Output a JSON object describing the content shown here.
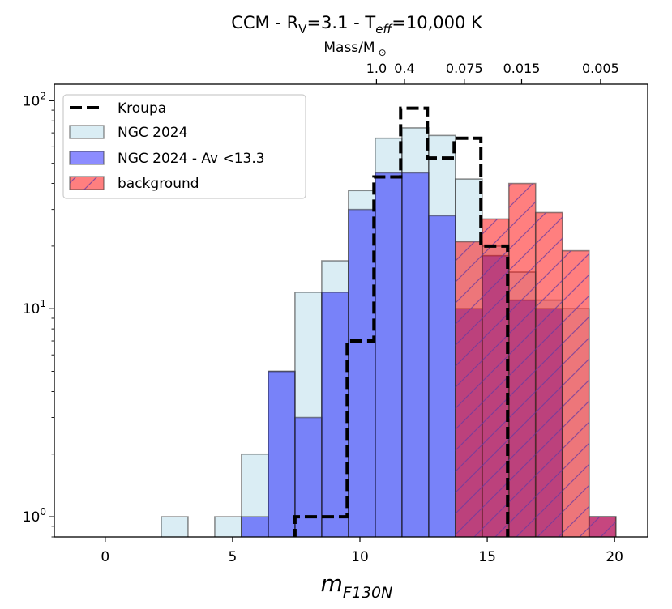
{
  "chart_data": {
    "type": "histogram",
    "title_parts": [
      "CCM - R",
      "V",
      "=3.1 - T",
      "eff",
      "=10,000 K"
    ],
    "xlabel_main": "m",
    "xlabel_sub": "F130N",
    "ylabel": "",
    "xlim": [
      -2,
      21.3
    ],
    "ylim_log": [
      0.8,
      120
    ],
    "yscale": "log",
    "x_ticks": [
      0,
      5,
      10,
      15,
      20
    ],
    "x_tick_labels": [
      "0",
      "5",
      "10",
      "15",
      "20"
    ],
    "y_ticks": [
      1,
      10,
      100
    ],
    "y_tick_label_base": "10",
    "y_tick_label_exps": [
      "0",
      "1",
      "2"
    ],
    "top_axis": {
      "label_main": "Mass/M",
      "label_sym": "⊙",
      "ticks": [
        {
          "x": 10.65,
          "label": "1.0"
        },
        {
          "x": 11.75,
          "label": "0.4"
        },
        {
          "x": 14.1,
          "label": "0.075"
        },
        {
          "x": 16.35,
          "label": "0.015"
        },
        {
          "x": 19.45,
          "label": "0.005"
        }
      ]
    },
    "bin_edges": [
      2.2,
      3.25,
      4.3,
      5.35,
      6.4,
      7.45,
      8.5,
      9.55,
      10.6,
      11.65,
      12.7,
      13.75,
      14.8,
      15.85,
      16.9,
      17.95,
      19.0,
      20.05
    ],
    "series": [
      {
        "name": "NGC 2024",
        "color": "#add8e6",
        "opacity": 0.45,
        "values": [
          1,
          0,
          1,
          2,
          5,
          12,
          17,
          37,
          66,
          74,
          68,
          42,
          20,
          15,
          11,
          10,
          0
        ]
      },
      {
        "name": "NGC 2024 - Av <13.3",
        "color": "#0000ff",
        "opacity": 0.45,
        "values": [
          0,
          0,
          0,
          1,
          5,
          3,
          12,
          30,
          45,
          45,
          28,
          10,
          18,
          11,
          10,
          0,
          1
        ]
      },
      {
        "name": "background",
        "color": "#ff0000",
        "opacity": 0.5,
        "values": [
          0,
          0,
          0,
          0,
          0,
          0,
          0,
          0,
          0,
          0,
          0,
          21,
          27,
          40,
          29,
          19,
          1
        ]
      }
    ],
    "kroupa": {
      "name": "Kroupa",
      "style": "dashed",
      "color": "#000000",
      "edges": [
        7.45,
        9.5,
        10.55,
        11.6,
        12.65,
        13.7,
        14.75,
        15.8
      ],
      "values": [
        1,
        7,
        43,
        92,
        53,
        66,
        20
      ]
    },
    "legend": [
      "Kroupa",
      "NGC 2024",
      "NGC 2024 - Av <13.3",
      "background"
    ],
    "legend_position": "top-left"
  }
}
